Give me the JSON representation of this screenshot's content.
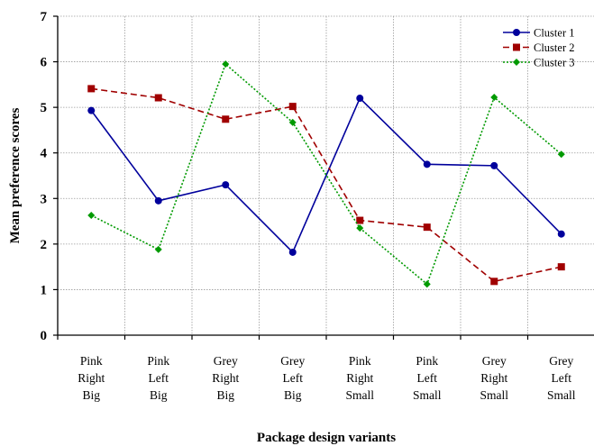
{
  "chart_data": {
    "type": "line",
    "title": "",
    "xlabel": "Package design variants",
    "ylabel": "Mean preference scores",
    "ylim": [
      0,
      7
    ],
    "yticks": [
      0,
      1,
      2,
      3,
      4,
      5,
      6,
      7
    ],
    "grid": true,
    "legend_position": "top-right",
    "categories": [
      [
        "Pink",
        "Right",
        "Big"
      ],
      [
        "Pink",
        "Left",
        "Big"
      ],
      [
        "Grey",
        "Right",
        "Big"
      ],
      [
        "Grey",
        "Left",
        "Big"
      ],
      [
        "Pink",
        "Right",
        "Small"
      ],
      [
        "Pink",
        "Left",
        "Small"
      ],
      [
        "Grey",
        "Right",
        "Small"
      ],
      [
        "Grey",
        "Left",
        "Small"
      ]
    ],
    "series": [
      {
        "name": "Cluster  1",
        "color": "#00009c",
        "marker": "circle",
        "line": "solid",
        "values": [
          4.93,
          2.95,
          3.3,
          1.82,
          5.2,
          3.75,
          3.72,
          2.22
        ]
      },
      {
        "name": "Cluster  2",
        "color": "#a00000",
        "marker": "square",
        "line": "dashed",
        "values": [
          5.41,
          5.21,
          4.74,
          5.02,
          2.52,
          2.37,
          1.18,
          1.5
        ]
      },
      {
        "name": "Cluster  3",
        "color": "#009a00",
        "marker": "diamond",
        "line": "dotted",
        "values": [
          2.63,
          1.88,
          5.95,
          4.67,
          2.35,
          1.12,
          5.22,
          3.97
        ]
      }
    ]
  }
}
